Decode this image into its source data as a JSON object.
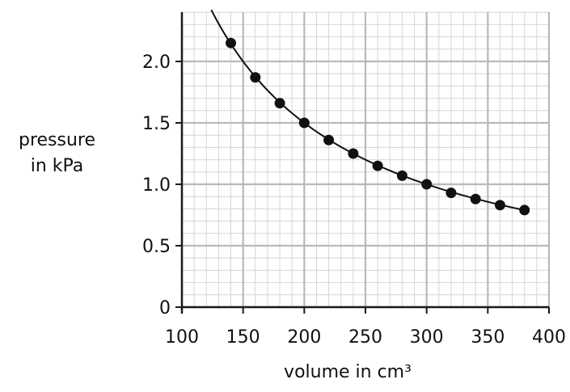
{
  "chart_data": {
    "type": "scatter",
    "title": "",
    "ylabel_lines": [
      "pressure",
      "in kPa"
    ],
    "xlabel": "volume in cm³",
    "xlim": [
      100,
      400
    ],
    "ylim": [
      0,
      2.4
    ],
    "x_ticks": [
      "100",
      "150",
      "200",
      "250",
      "300",
      "350",
      "400"
    ],
    "y_ticks": [
      "0",
      "0.5",
      "1.0",
      "1.5",
      "2.0"
    ],
    "grid": true,
    "points": {
      "x": [
        140,
        160,
        180,
        200,
        220,
        240,
        260,
        280,
        300,
        320,
        340,
        360,
        380
      ],
      "y": [
        2.15,
        1.87,
        1.66,
        1.5,
        1.36,
        1.25,
        1.15,
        1.07,
        1.0,
        0.93,
        0.88,
        0.83,
        0.79
      ]
    },
    "curve": {
      "type": "best-fit",
      "relation": "pressure = 300 / volume",
      "x_range": [
        124,
        380
      ]
    }
  }
}
